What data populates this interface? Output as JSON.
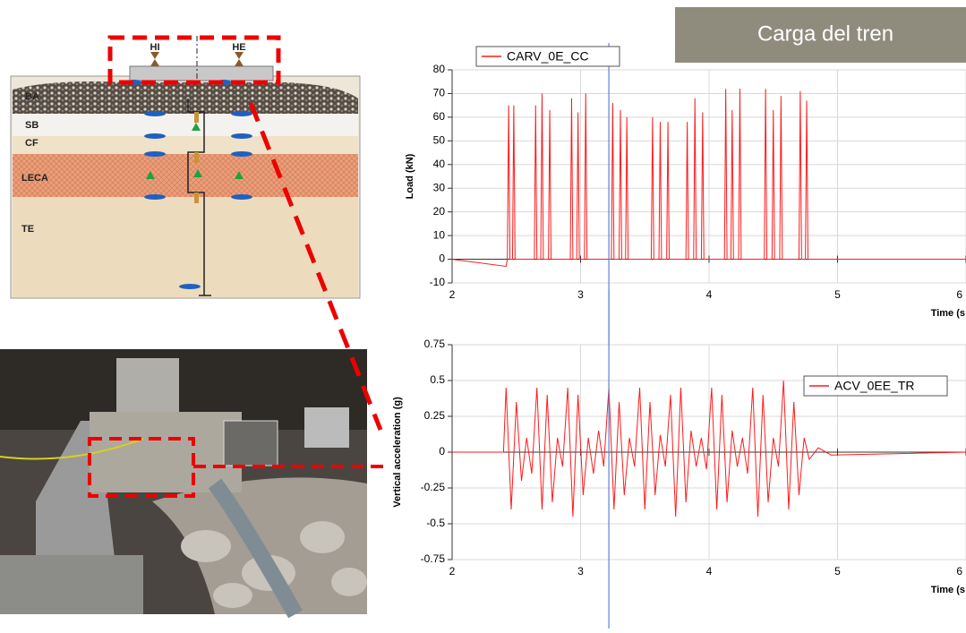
{
  "header": {
    "title": "Carga del tren"
  },
  "diagram": {
    "labels": [
      "HI",
      "HE",
      "BA",
      "SB",
      "CF",
      "LECA",
      "TE"
    ]
  },
  "chart_data": [
    {
      "type": "line",
      "xlabel": "Time (s",
      "ylabel": "Load (kN)",
      "legend": "upper left",
      "grid": true,
      "cursor_x": 3.22,
      "xlim": [
        2,
        6
      ],
      "xticks": [
        2,
        3,
        4,
        5,
        6
      ],
      "ylim": [
        -10,
        80
      ],
      "yticks": [
        -10,
        0,
        10,
        20,
        30,
        40,
        50,
        60,
        70,
        80
      ],
      "series": [
        {
          "name": "CARV_0E_CC",
          "color": "#ff1a1a",
          "x": [
            2,
            2.42,
            2.43,
            2.44,
            2.45,
            2.47,
            2.48,
            2.49,
            2.64,
            2.65,
            2.66,
            2.69,
            2.7,
            2.71,
            2.75,
            2.76,
            2.77,
            2.92,
            2.93,
            2.94,
            2.97,
            2.98,
            2.99,
            3.03,
            3.04,
            3.05,
            3.24,
            3.25,
            3.26,
            3.3,
            3.31,
            3.32,
            3.35,
            3.36,
            3.37,
            3.55,
            3.56,
            3.57,
            3.61,
            3.62,
            3.63,
            3.67,
            3.68,
            3.69,
            3.82,
            3.83,
            3.84,
            3.88,
            3.89,
            3.9,
            3.94,
            3.95,
            3.96,
            4.12,
            4.13,
            4.14,
            4.17,
            4.18,
            4.19,
            4.23,
            4.24,
            4.25,
            4.43,
            4.44,
            4.45,
            4.49,
            4.5,
            4.51,
            4.55,
            4.56,
            4.57,
            4.7,
            4.71,
            4.72,
            4.75,
            4.76,
            4.77,
            6
          ],
          "values": [
            0,
            -3,
            0,
            65,
            0,
            0,
            65,
            0,
            0,
            65,
            0,
            0,
            70,
            0,
            0,
            63,
            0,
            0,
            68,
            0,
            0,
            62,
            0,
            0,
            70,
            0,
            0,
            66,
            0,
            0,
            63,
            0,
            0,
            60,
            0,
            0,
            60,
            0,
            0,
            58,
            0,
            0,
            58,
            0,
            0,
            58,
            0,
            0,
            68,
            0,
            0,
            62,
            0,
            0,
            72,
            0,
            0,
            63,
            0,
            0,
            72,
            0,
            0,
            72,
            0,
            0,
            63,
            0,
            0,
            69,
            0,
            0,
            71,
            0,
            0,
            67,
            0,
            0
          ]
        }
      ]
    },
    {
      "type": "line",
      "xlabel": "Time (s",
      "ylabel": "Vertical acceleration (g)",
      "legend": "upper right",
      "grid": true,
      "cursor_x": 3.22,
      "xlim": [
        2,
        6
      ],
      "xticks": [
        2,
        3,
        4,
        5,
        6
      ],
      "ylim": [
        -0.75,
        0.75
      ],
      "yticks": [
        -0.75,
        -0.5,
        -0.25,
        0,
        0.25,
        0.5,
        0.75
      ],
      "series": [
        {
          "name": "ACV_0EE_TR",
          "color": "#ff1a1a",
          "x": [
            2,
            2.4,
            2.42,
            2.46,
            2.5,
            2.54,
            2.58,
            2.62,
            2.66,
            2.7,
            2.74,
            2.78,
            2.82,
            2.86,
            2.9,
            2.94,
            2.98,
            3.02,
            3.06,
            3.1,
            3.14,
            3.18,
            3.22,
            3.26,
            3.3,
            3.34,
            3.38,
            3.42,
            3.46,
            3.5,
            3.54,
            3.58,
            3.62,
            3.66,
            3.7,
            3.74,
            3.78,
            3.82,
            3.86,
            3.9,
            3.94,
            3.98,
            4.02,
            4.06,
            4.1,
            4.14,
            4.18,
            4.22,
            4.26,
            4.3,
            4.34,
            4.38,
            4.42,
            4.46,
            4.5,
            4.54,
            4.58,
            4.62,
            4.66,
            4.7,
            4.74,
            4.78,
            4.85,
            4.95,
            6
          ],
          "values": [
            0,
            0,
            0.45,
            -0.4,
            0.35,
            -0.2,
            0.1,
            -0.15,
            0.45,
            -0.4,
            0.4,
            -0.35,
            0.1,
            -0.1,
            0.45,
            -0.45,
            0.4,
            -0.3,
            0.1,
            -0.15,
            0.15,
            -0.1,
            0.45,
            -0.4,
            0.35,
            -0.3,
            0.1,
            -0.1,
            0.45,
            -0.4,
            0.35,
            -0.3,
            0.12,
            -0.1,
            0.4,
            -0.45,
            0.45,
            -0.35,
            0.15,
            -0.1,
            0.1,
            -0.12,
            0.45,
            -0.4,
            0.4,
            -0.35,
            0.15,
            -0.1,
            0.1,
            -0.15,
            0.45,
            -0.45,
            0.4,
            -0.35,
            0.1,
            -0.1,
            0.5,
            -0.4,
            0.35,
            -0.3,
            0.1,
            -0.05,
            0.03,
            -0.02,
            0
          ]
        }
      ]
    }
  ]
}
